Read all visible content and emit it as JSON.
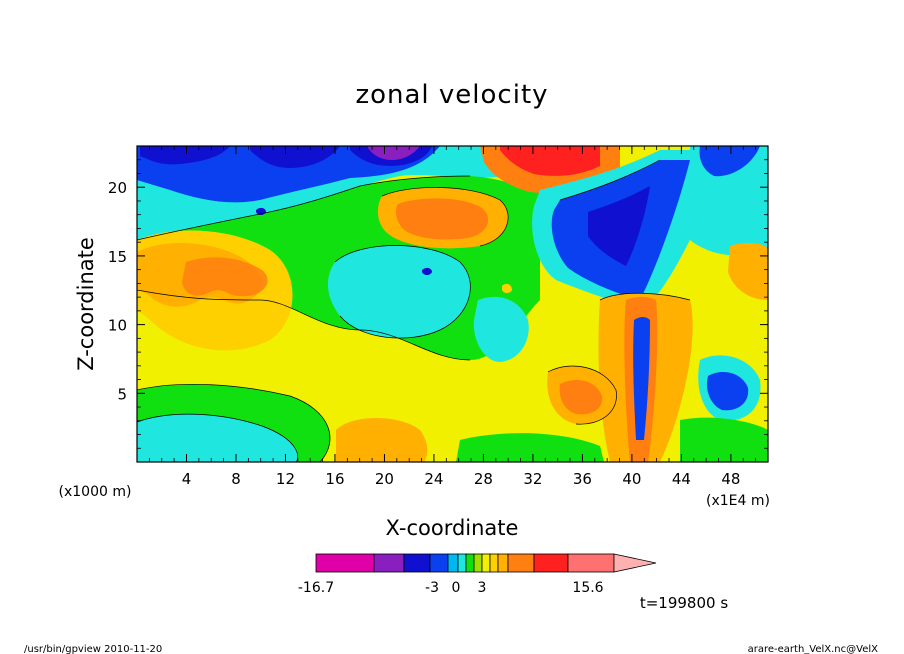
{
  "chart_data": {
    "type": "heatmap",
    "title": "zonal velocity",
    "xlabel": "X-coordinate",
    "ylabel": "Z-coordinate",
    "x_unit": "(x1E4 m)",
    "y_unit": "(x1000 m)",
    "xlim": [
      0,
      51
    ],
    "ylim": [
      0,
      23
    ],
    "x_ticks": [
      4,
      8,
      12,
      16,
      20,
      24,
      28,
      32,
      36,
      40,
      44,
      48
    ],
    "y_ticks": [
      5,
      10,
      15,
      20
    ],
    "colorbar": {
      "min": -16.7,
      "max": 15.6,
      "labels": [
        "-16.7",
        "-3",
        "0",
        "3",
        "15.6"
      ],
      "colors": [
        "#e000a8",
        "#8a1fbf",
        "#1010d0",
        "#0a40f0",
        "#00b8f0",
        "#20e6e0",
        "#10e010",
        "#a0e000",
        "#f0f000",
        "#ffd000",
        "#ffb000",
        "#ff8010",
        "#ff2020",
        "#ff7070",
        "#ffb0b0"
      ]
    },
    "time_label": "t=199800 s"
  },
  "footer": {
    "left": "/usr/bin/gpview   2010-11-20",
    "right": "arare-earth_VelX.nc@VelX"
  }
}
